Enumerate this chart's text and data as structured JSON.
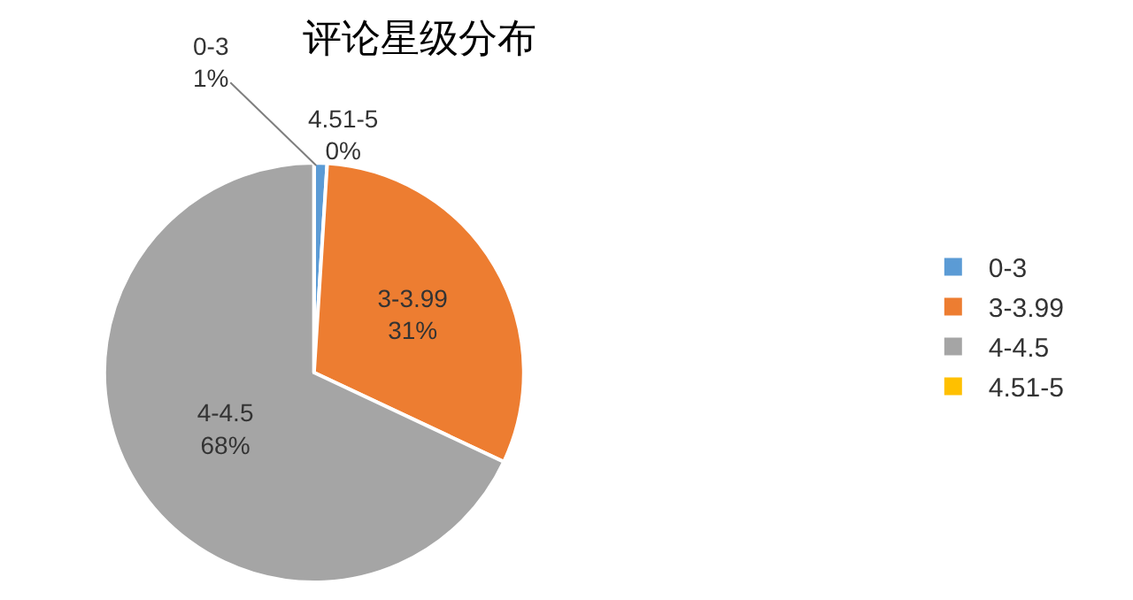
{
  "chart_data": {
    "type": "pie",
    "title": "评论星级分布",
    "categories": [
      "0-3",
      "3-3.99",
      "4-4.5",
      "4.51-5"
    ],
    "values": [
      1,
      31,
      68,
      0
    ],
    "value_labels": [
      "1%",
      "31%",
      "68%",
      "0%"
    ],
    "colors": [
      "#5b9bd5",
      "#ed7d31",
      "#a5a5a5",
      "#ffc000"
    ],
    "legend": "right"
  }
}
